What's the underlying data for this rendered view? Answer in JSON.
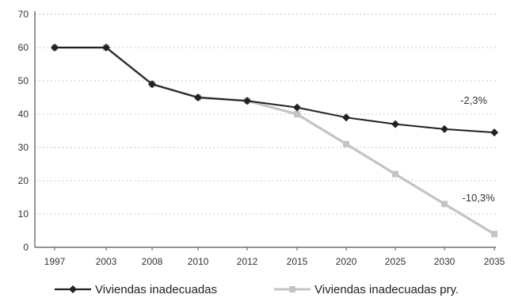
{
  "chart_data": {
    "type": "line",
    "title": "",
    "xlabel": "",
    "ylabel": "",
    "categories": [
      "1997",
      "2003",
      "2008",
      "2010",
      "2012",
      "2015",
      "2020",
      "2025",
      "2030",
      "2035"
    ],
    "ylim": [
      0,
      70
    ],
    "yticks": [
      0,
      10,
      20,
      30,
      40,
      50,
      60,
      70
    ],
    "grid": true,
    "legend_position": "bottom",
    "series": [
      {
        "name": "Viviendas inadecuadas",
        "color": "#222222",
        "marker": "diamond",
        "values": [
          60,
          60,
          49,
          45,
          44,
          42,
          39,
          37,
          35.5,
          34.5
        ]
      },
      {
        "name": "Viviendas inadecuadas pry.",
        "color": "#c4c4c4",
        "marker": "square",
        "values": [
          60,
          60,
          49,
          45,
          44,
          40,
          31,
          22,
          13,
          4
        ]
      }
    ],
    "annotations": [
      {
        "text": "-2,3%",
        "series": 0,
        "near": "2030"
      },
      {
        "text": "-10,3%",
        "series": 1,
        "near": "2030"
      }
    ]
  }
}
